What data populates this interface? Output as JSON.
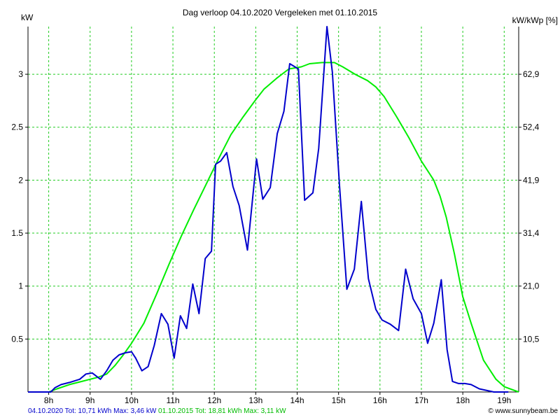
{
  "chart_data": {
    "type": "line",
    "title": "Dag  verloop 04.10.2020   Vergeleken met 01.10.2015",
    "ylabel_left": "kW",
    "ylabel_right": "kW/kWp [%]",
    "x_ticks": [
      "8h",
      "9h",
      "10h",
      "11h",
      "12h",
      "13h",
      "14h",
      "15h",
      "16h",
      "17h",
      "18h",
      "19h"
    ],
    "x_range": [
      7.5,
      19.35
    ],
    "y_ticks_left": [
      "0.5",
      "1",
      "1.5",
      "2",
      "2.5",
      "3"
    ],
    "y_ticks_right": [
      "10,5",
      "21,0",
      "31,4",
      "41,9",
      "52,4",
      "62,9"
    ],
    "ylim": [
      0,
      3.45
    ],
    "grid": true,
    "series": [
      {
        "name": "04.10.2020",
        "color": "#0000cc",
        "x": [
          7.5,
          8.05,
          8.15,
          8.3,
          8.5,
          8.75,
          8.9,
          9.05,
          9.15,
          9.25,
          9.4,
          9.55,
          9.7,
          9.85,
          10.0,
          10.1,
          10.25,
          10.4,
          10.55,
          10.72,
          10.88,
          11.03,
          11.18,
          11.33,
          11.48,
          11.63,
          11.78,
          11.93,
          12.03,
          12.15,
          12.3,
          12.45,
          12.6,
          12.8,
          13.02,
          13.17,
          13.35,
          13.52,
          13.68,
          13.82,
          14.03,
          14.18,
          14.38,
          14.52,
          14.72,
          14.85,
          15.02,
          15.2,
          15.38,
          15.55,
          15.72,
          15.9,
          16.05,
          16.25,
          16.45,
          16.62,
          16.8,
          17.0,
          17.15,
          17.3,
          17.48,
          17.62,
          17.75,
          17.9,
          18.05,
          18.2,
          18.4,
          18.75,
          19.1
        ],
        "values": [
          0,
          0,
          0.04,
          0.07,
          0.09,
          0.12,
          0.17,
          0.18,
          0.15,
          0.12,
          0.2,
          0.3,
          0.35,
          0.37,
          0.38,
          0.32,
          0.2,
          0.24,
          0.44,
          0.74,
          0.64,
          0.32,
          0.72,
          0.6,
          1.02,
          0.74,
          1.26,
          1.33,
          2.15,
          2.18,
          2.26,
          1.94,
          1.76,
          1.34,
          2.2,
          1.82,
          1.93,
          2.44,
          2.65,
          3.1,
          3.05,
          1.81,
          1.88,
          2.3,
          3.46,
          3.02,
          1.96,
          0.97,
          1.16,
          1.8,
          1.07,
          0.78,
          0.68,
          0.64,
          0.58,
          1.16,
          0.88,
          0.74,
          0.46,
          0.65,
          1.06,
          0.4,
          0.1,
          0.08,
          0.08,
          0.07,
          0.03,
          0,
          0
        ]
      },
      {
        "name": "01.10.2015",
        "color": "#00ee00",
        "x": [
          7.5,
          8.0,
          8.2,
          8.5,
          8.8,
          9.0,
          9.2,
          9.4,
          9.6,
          9.8,
          10.0,
          10.3,
          10.6,
          10.9,
          11.2,
          11.5,
          11.8,
          12.1,
          12.4,
          12.7,
          13.0,
          13.2,
          13.5,
          13.8,
          14.1,
          14.3,
          14.6,
          14.9,
          15.1,
          15.4,
          15.7,
          15.9,
          16.1,
          16.4,
          16.7,
          17.0,
          17.3,
          17.45,
          17.6,
          17.8,
          18.0,
          18.2,
          18.5,
          18.8,
          19.0,
          19.35
        ],
        "values": [
          0,
          0,
          0.03,
          0.07,
          0.1,
          0.12,
          0.14,
          0.17,
          0.25,
          0.35,
          0.46,
          0.65,
          0.92,
          1.2,
          1.47,
          1.72,
          1.96,
          2.2,
          2.43,
          2.6,
          2.76,
          2.86,
          2.96,
          3.05,
          3.07,
          3.1,
          3.11,
          3.11,
          3.07,
          3.0,
          2.94,
          2.88,
          2.79,
          2.6,
          2.4,
          2.18,
          2.0,
          1.85,
          1.65,
          1.3,
          0.9,
          0.65,
          0.3,
          0.12,
          0.05,
          0.0
        ]
      }
    ]
  },
  "footer": {
    "left_blue": "04.10.2020 Tot: 10,71 kWh Max: 3,46 kW",
    "left_green": "01.10.2015 Tot: 18,81 kWh Max: 3,11 kW",
    "right": "© www.sunnybeam.be"
  }
}
